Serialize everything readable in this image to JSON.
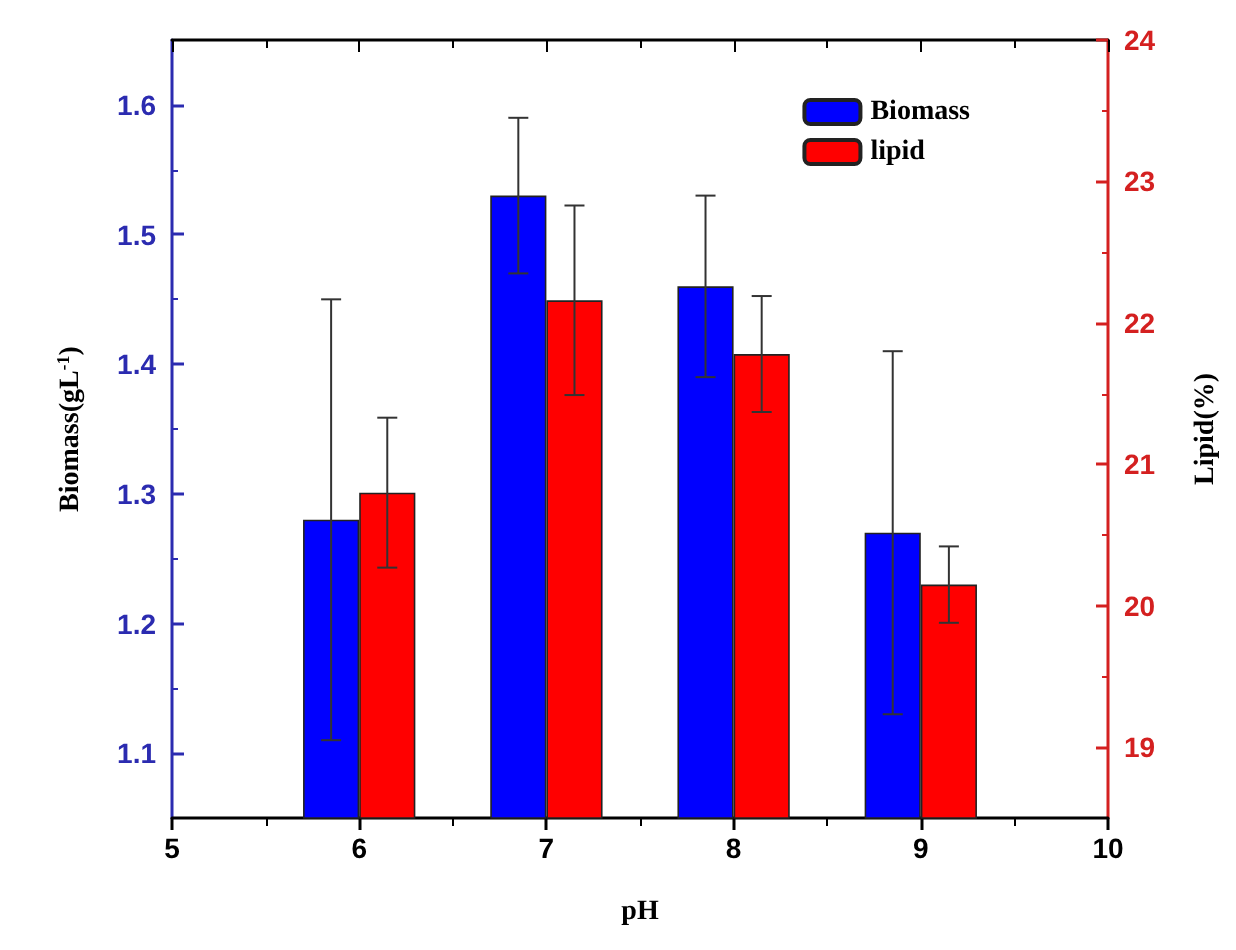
{
  "chart_data": {
    "type": "bar",
    "xlabel": "pH",
    "ylabel": "Biomass(gL$^{-1}$)",
    "y2label": "Lipid(%)",
    "x": [
      6,
      7,
      8,
      9
    ],
    "xlim": [
      5,
      10
    ],
    "xticks": [
      5,
      6,
      7,
      8,
      9,
      10
    ],
    "ylim": [
      1.05,
      1.65
    ],
    "yticks": [
      1.1,
      1.2,
      1.3,
      1.4,
      1.5,
      1.6
    ],
    "y2lim": [
      18.5,
      24
    ],
    "y2ticks": [
      19,
      20,
      21,
      22,
      23,
      24
    ],
    "series": [
      {
        "name": "Biomass",
        "color": "#0000ff",
        "values": [
          1.28,
          1.53,
          1.46,
          1.27
        ],
        "errors": [
          0.17,
          0.06,
          0.07,
          0.14
        ]
      },
      {
        "name": "lipid",
        "color": "#ff0000",
        "axis": "y2",
        "values": [
          20.8,
          22.16,
          21.78,
          20.15
        ],
        "errors": [
          0.53,
          0.67,
          0.41,
          0.27
        ]
      }
    ],
    "grid": false,
    "legend": "top right"
  }
}
